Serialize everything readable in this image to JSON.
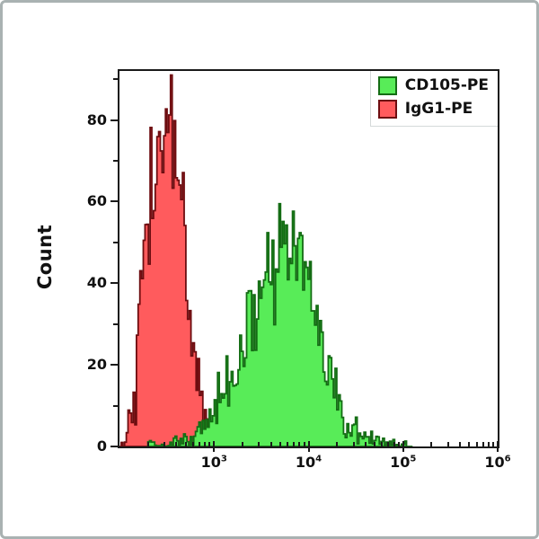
{
  "figure": {
    "ylabel": "Count",
    "background": "#ffffff",
    "frame_color": "#1a1a1a",
    "outer_border_color": "#a9b2b2"
  },
  "legend": {
    "position": "top-right-inside",
    "items": [
      {
        "label": "CD105-PE",
        "fill": "#58ec58",
        "edge": "#146c14"
      },
      {
        "label": "IgG1-PE",
        "fill": "#ff5b5d",
        "edge": "#6d0d10"
      }
    ]
  },
  "axes": {
    "y": {
      "label": "Count",
      "min": 0,
      "max": 92,
      "major_ticks": [
        0,
        20,
        40,
        60,
        80
      ],
      "minor_ticks": [
        10,
        30,
        50,
        70,
        90
      ]
    },
    "x": {
      "scale": "log10",
      "min_exp": 2,
      "max_exp": 6,
      "major_tick_exps": [
        3,
        4,
        5,
        6
      ],
      "tick_base": "10",
      "minor_pattern": [
        2,
        3,
        4,
        5,
        6,
        7,
        8,
        9
      ]
    }
  },
  "chart_data": {
    "type": "area",
    "subtype": "flow-cytometry-overlay-histogram",
    "x_range_log10": [
      2,
      6
    ],
    "y_range": [
      0,
      92
    ],
    "grid": false,
    "legend_position": "top-right",
    "series": [
      {
        "name": "IgG1-PE",
        "fill": "#ff5b5d",
        "edge": "#6d0d10",
        "peak_x": 350,
        "peak_count_envelope": 80,
        "peak_count_spike": 87,
        "anchors_log10_count": [
          [
            2.0,
            0.5
          ],
          [
            2.05,
            2
          ],
          [
            2.1,
            6
          ],
          [
            2.14,
            13
          ],
          [
            2.18,
            22
          ],
          [
            2.22,
            33
          ],
          [
            2.26,
            43
          ],
          [
            2.3,
            52
          ],
          [
            2.34,
            61
          ],
          [
            2.38,
            68
          ],
          [
            2.42,
            74
          ],
          [
            2.46,
            78
          ],
          [
            2.5,
            80
          ],
          [
            2.54,
            79
          ],
          [
            2.58,
            74
          ],
          [
            2.62,
            66
          ],
          [
            2.66,
            56
          ],
          [
            2.7,
            46
          ],
          [
            2.74,
            36
          ],
          [
            2.78,
            27
          ],
          [
            2.82,
            19
          ],
          [
            2.86,
            13
          ],
          [
            2.9,
            8.5
          ],
          [
            2.94,
            5.5
          ],
          [
            3.0,
            2.8
          ],
          [
            3.06,
            1.4
          ],
          [
            3.12,
            0.6
          ],
          [
            3.18,
            0.2
          ],
          [
            3.22,
            0
          ]
        ]
      },
      {
        "name": "CD105-PE",
        "fill": "#58ec58",
        "edge": "#146c14",
        "peak_x": 5900,
        "peak_count_envelope": 52,
        "peak_count_spike": 60,
        "anchors_log10_count": [
          [
            2.3,
            0.3
          ],
          [
            2.42,
            0.6
          ],
          [
            2.55,
            0.9
          ],
          [
            2.65,
            1.2
          ],
          [
            2.75,
            2
          ],
          [
            2.85,
            3.8
          ],
          [
            2.95,
            6.5
          ],
          [
            3.05,
            10.5
          ],
          [
            3.15,
            15.5
          ],
          [
            3.25,
            21
          ],
          [
            3.35,
            27
          ],
          [
            3.45,
            33.5
          ],
          [
            3.55,
            39.5
          ],
          [
            3.65,
            45
          ],
          [
            3.72,
            49.5
          ],
          [
            3.78,
            52
          ],
          [
            3.84,
            50
          ],
          [
            3.9,
            46.5
          ],
          [
            3.96,
            42
          ],
          [
            4.02,
            36
          ],
          [
            4.08,
            30
          ],
          [
            4.14,
            24
          ],
          [
            4.2,
            18.5
          ],
          [
            4.26,
            13.5
          ],
          [
            4.32,
            9.8
          ],
          [
            4.38,
            7
          ],
          [
            4.44,
            5
          ],
          [
            4.52,
            3.2
          ],
          [
            4.6,
            2.1
          ],
          [
            4.7,
            1.3
          ],
          [
            4.8,
            0.9
          ],
          [
            4.92,
            0.5
          ],
          [
            5.02,
            0.25
          ],
          [
            5.1,
            0
          ]
        ]
      }
    ],
    "noise": {
      "seed": 42,
      "scale": 1.0,
      "bin_log_width": 0.018
    }
  }
}
